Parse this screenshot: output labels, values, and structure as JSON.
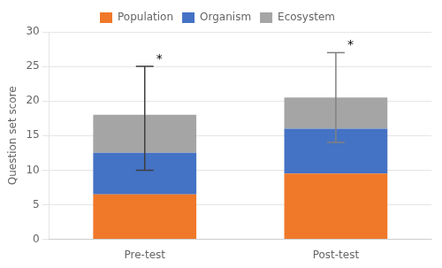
{
  "chart_data": {
    "type": "bar",
    "stacked": true,
    "categories": [
      "Pre-test",
      "Post-test"
    ],
    "series": [
      {
        "name": "Population",
        "color": "#F07829",
        "values": [
          6.5,
          9.5
        ]
      },
      {
        "name": "Organism",
        "color": "#4472C4",
        "values": [
          6.0,
          6.5
        ]
      },
      {
        "name": "Ecosystem",
        "color": "#A5A5A5",
        "values": [
          5.5,
          4.5
        ]
      }
    ],
    "error_bars": [
      {
        "low": 10.0,
        "high": 25.0,
        "color": "#3f3f3f",
        "label": "*"
      },
      {
        "low": 14.0,
        "high": 27.0,
        "color": "#808080",
        "label": "*"
      }
    ],
    "ylabel": "Question set score",
    "ylim": [
      0,
      30
    ],
    "yticks": [
      0,
      5,
      10,
      15,
      20,
      25,
      30
    ],
    "grid": true,
    "legend": "top"
  }
}
